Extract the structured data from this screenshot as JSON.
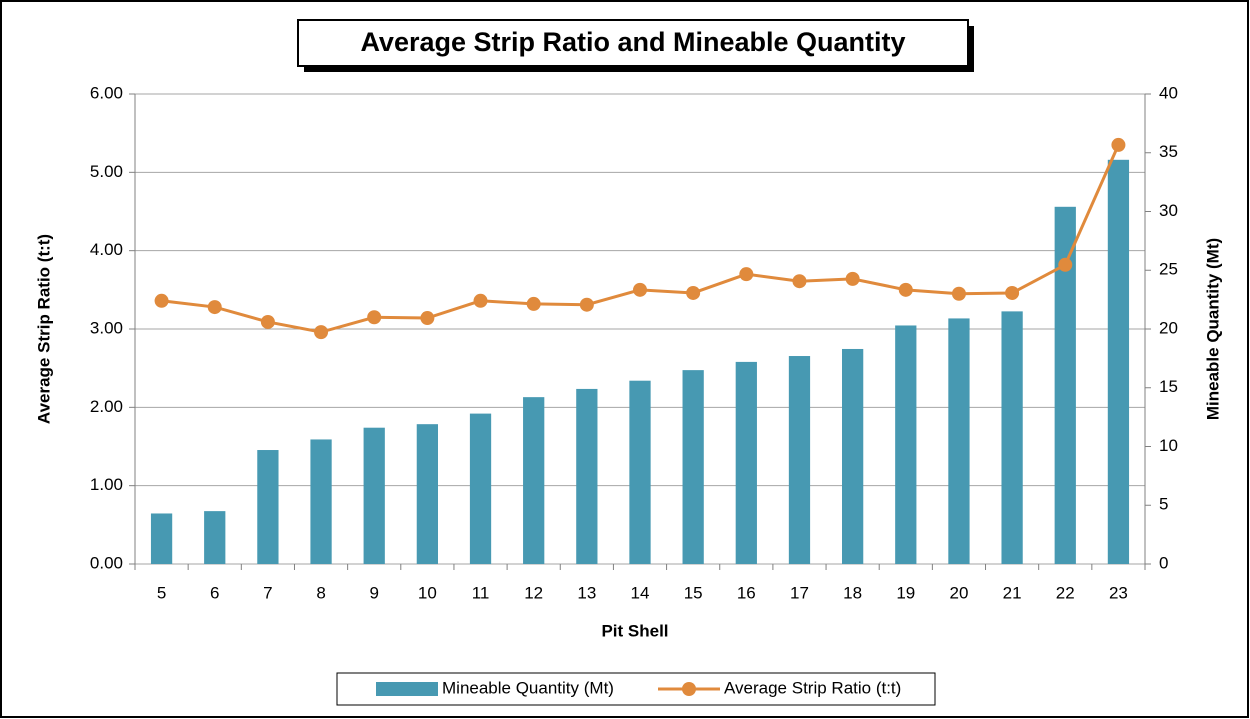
{
  "chart_data": {
    "type": "bar",
    "title": "Average Strip Ratio and Mineable Quantity",
    "x_label": "Pit Shell",
    "y_label": "Average Strip Ratio (t:t)",
    "y2_label": "Mineable Quantity (Mt)",
    "categories": [
      "5",
      "6",
      "7",
      "8",
      "9",
      "10",
      "11",
      "12",
      "13",
      "14",
      "15",
      "16",
      "17",
      "18",
      "19",
      "20",
      "21",
      "22",
      "23"
    ],
    "series": [
      {
        "name": "Mineable Quantity (Mt)",
        "type": "bar",
        "axis": "y2",
        "color": "#4799b2",
        "values": [
          4.3,
          4.5,
          9.7,
          10.6,
          11.6,
          11.9,
          12.8,
          14.2,
          14.9,
          15.6,
          16.5,
          17.2,
          17.7,
          18.3,
          20.3,
          20.9,
          21.5,
          30.4,
          34.4
        ]
      },
      {
        "name": "Average Strip Ratio (t:t)",
        "type": "line",
        "color": "#e08a3c",
        "values": [
          3.36,
          3.28,
          3.09,
          2.96,
          3.15,
          3.14,
          3.36,
          3.32,
          3.31,
          3.5,
          3.46,
          3.7,
          3.61,
          3.64,
          3.5,
          3.45,
          3.46,
          3.82,
          5.35
        ]
      }
    ],
    "ylim": [
      0,
      6
    ],
    "yticks": [
      {
        "value": 0,
        "label": "0.00"
      },
      {
        "value": 1,
        "label": "1.00"
      },
      {
        "value": 2,
        "label": "2.00"
      },
      {
        "value": 3,
        "label": "3.00"
      },
      {
        "value": 4,
        "label": "4.00"
      },
      {
        "value": 5,
        "label": "5.00"
      },
      {
        "value": 6,
        "label": "6.00"
      }
    ],
    "y2lim": [
      0,
      40
    ],
    "y2ticks": [
      0,
      5,
      10,
      15,
      20,
      25,
      30,
      35,
      40
    ],
    "grid": true,
    "legend": "bottom"
  }
}
